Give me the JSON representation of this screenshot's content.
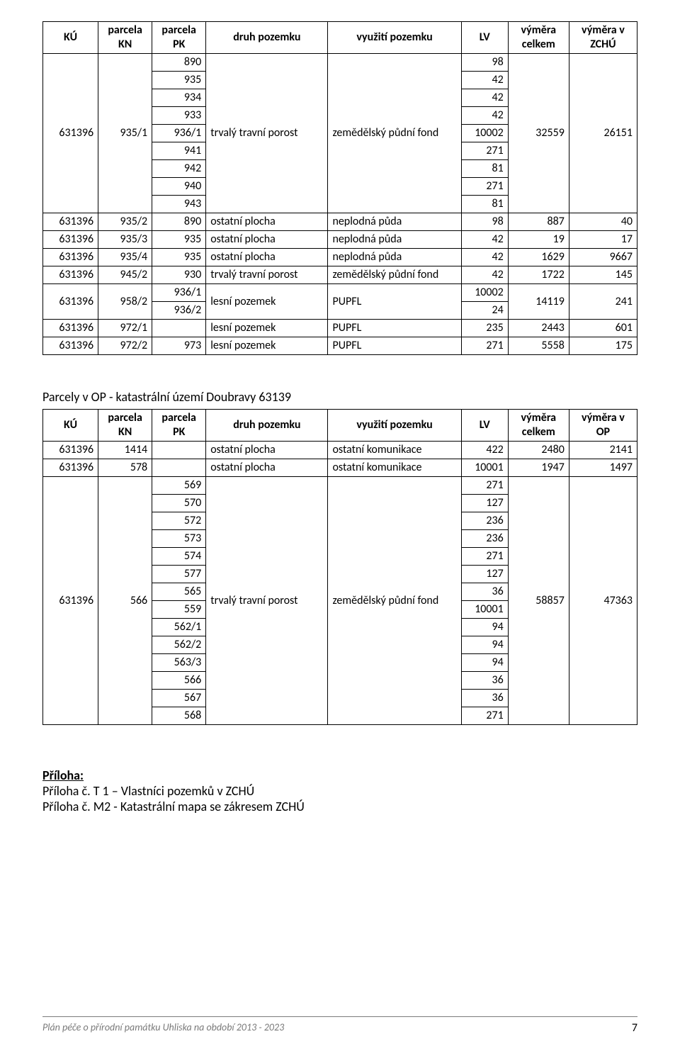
{
  "table1": {
    "headers": {
      "ku": "KÚ",
      "kn": "parcela KN",
      "pk": "parcela PK",
      "dp": "druh pozemku",
      "vp": "využití pozemku",
      "lv": "LV",
      "vc": "výměra celkem",
      "vz": "výměra v ZCHÚ"
    },
    "group1": {
      "ku": "631396",
      "kn": "935/1",
      "pk": [
        "890",
        "935",
        "934",
        "933",
        "936/1",
        "941",
        "942",
        "940",
        "943"
      ],
      "dp": "trvalý travní porost",
      "vp": "zemědělský půdní fond",
      "lv": [
        "98",
        "42",
        "42",
        "42",
        "10002",
        "271",
        "81",
        "271",
        "81"
      ],
      "vc": "32559",
      "vz": "26151"
    },
    "rows_single": [
      {
        "ku": "631396",
        "kn": "935/2",
        "pk": "890",
        "dp": "ostatní plocha",
        "vp": "neplodná půda",
        "lv": "98",
        "vc": "887",
        "vz": "40"
      },
      {
        "ku": "631396",
        "kn": "935/3",
        "pk": "935",
        "dp": "ostatní plocha",
        "vp": "neplodná půda",
        "lv": "42",
        "vc": "19",
        "vz": "17"
      },
      {
        "ku": "631396",
        "kn": "935/4",
        "pk": "935",
        "dp": "ostatní plocha",
        "vp": "neplodná půda",
        "lv": "42",
        "vc": "1629",
        "vz": "9667"
      },
      {
        "ku": "631396",
        "kn": "945/2",
        "pk": "930",
        "dp": "trvalý travní porost",
        "vp": "zemědělský půdní fond",
        "lv": "42",
        "vc": "1722",
        "vz": "145"
      }
    ],
    "group2": {
      "ku": "631396",
      "kn": "958/2",
      "pk": [
        "936/1",
        "936/2"
      ],
      "dp": "lesní pozemek",
      "vp": "PUPFL",
      "lv": [
        "10002",
        "24"
      ],
      "vc": "14119",
      "vz": "241"
    },
    "rows_single2": [
      {
        "ku": "631396",
        "kn": "972/1",
        "pk": "",
        "dp": "lesní pozemek",
        "vp": "PUPFL",
        "lv": "235",
        "vc": "2443",
        "vz": "601"
      },
      {
        "ku": "631396",
        "kn": "972/2",
        "pk": "973",
        "dp": "lesní pozemek",
        "vp": "PUPFL",
        "lv": "271",
        "vc": "5558",
        "vz": "175"
      }
    ]
  },
  "section2_title": "Parcely v OP - katastrální území Doubravy 63139",
  "table2": {
    "headers": {
      "ku": "KÚ",
      "kn": "parcela KN",
      "pk": "parcela PK",
      "dp": "druh pozemku",
      "vp": "využití pozemku",
      "lv": "LV",
      "vc": "výměra celkem",
      "vz": "výměra v OP"
    },
    "rows_top": [
      {
        "ku": "631396",
        "kn": "1414",
        "pk": "",
        "dp": "ostatní plocha",
        "vp": "ostatní komunikace",
        "lv": "422",
        "vc": "2480",
        "vz": "2141"
      },
      {
        "ku": "631396",
        "kn": "578",
        "pk": "",
        "dp": "ostatní plocha",
        "vp": "ostatní komunikace",
        "lv": "10001",
        "vc": "1947",
        "vz": "1497"
      }
    ],
    "group": {
      "ku": "631396",
      "kn": "566",
      "pk": [
        "569",
        "570",
        "572",
        "573",
        "574",
        "577",
        "565",
        "559",
        "562/1",
        "562/2",
        "563/3",
        "566",
        "567",
        "568"
      ],
      "dp": "trvalý travní porost",
      "vp": "zemědělský půdní fond",
      "lv": [
        "271",
        "127",
        "236",
        "236",
        "271",
        "127",
        "36",
        "10001",
        "94",
        "94",
        "94",
        "36",
        "36",
        "271"
      ],
      "vc": "58857",
      "vz": "47363"
    }
  },
  "priloha": {
    "title": "Příloha:",
    "line1": "Příloha č. T 1 – Vlastníci pozemků v ZCHÚ",
    "line2": "Příloha č. M2 - Katastrální mapa se zákresem ZCHÚ"
  },
  "footer": {
    "left": "Plán péče o přírodní památku Uhliska na období 2013 - 2023",
    "page": "7"
  }
}
